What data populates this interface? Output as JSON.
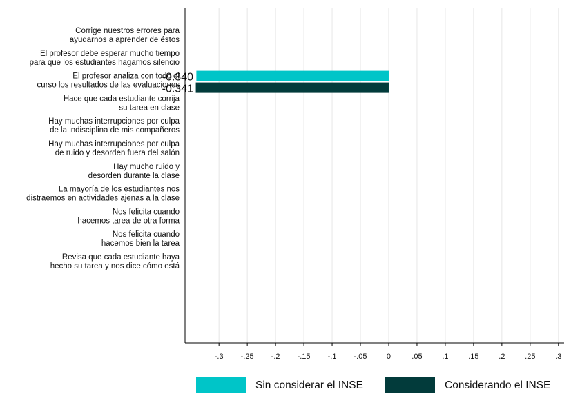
{
  "chart_data": {
    "type": "bar",
    "orientation": "horizontal",
    "categories": [
      [
        "Corrige nuestros errores para",
        "ayudarnos a aprender de éstos"
      ],
      [
        "El profesor debe esperar mucho tiempo",
        "para que los estudiantes hagamos silencio"
      ],
      [
        "El profesor analiza con todo el",
        "curso los resultados de las evaluaciones"
      ],
      [
        "Hace que cada estudiante corrija",
        "su tarea en clase"
      ],
      [
        "Hay muchas interrupciones por culpa",
        "de la indisciplina de mis compañeros"
      ],
      [
        "Hay muchas interrupciones por culpa",
        "de ruido y desorden fuera del salón"
      ],
      [
        "Hay mucho ruido y",
        "desorden durante la clase"
      ],
      [
        "La mayoría de los estudiantes nos",
        "distraemos en actividades ajenas a la clase"
      ],
      [
        "Nos felicita cuando",
        "hacemos tarea de otra forma"
      ],
      [
        "Nos felicita cuando",
        "hacemos bien la tarea"
      ],
      [
        "Revisa que cada estudiante haya",
        "hecho su tarea y nos dice cómo está"
      ]
    ],
    "series": [
      {
        "name": "Sin considerar el INSE",
        "color": "#00c5c8",
        "values": [
          null,
          null,
          -0.34,
          null,
          null,
          null,
          null,
          null,
          null,
          null,
          null
        ],
        "labels": [
          null,
          null,
          "-0.340",
          null,
          null,
          null,
          null,
          null,
          null,
          null,
          null
        ]
      },
      {
        "name": "Considerando el INSE",
        "color": "#023b3b",
        "values": [
          null,
          null,
          -0.341,
          null,
          null,
          null,
          null,
          null,
          null,
          null,
          null
        ],
        "labels": [
          null,
          null,
          "-0.341",
          null,
          null,
          null,
          null,
          null,
          null,
          null,
          null
        ]
      }
    ],
    "xlim": [
      -0.36,
      0.31
    ],
    "xticks": [
      -0.3,
      -0.25,
      -0.2,
      -0.15,
      -0.1,
      -0.05,
      0,
      0.05,
      0.1,
      0.15,
      0.2,
      0.25,
      0.3
    ],
    "xtick_labels": [
      "-.3",
      "-.25",
      "-.2",
      "-.15",
      "-.1",
      "-.05",
      "0",
      ".05",
      ".1",
      ".15",
      ".2",
      ".25",
      ".3"
    ],
    "grid": true,
    "legend_position": "bottom",
    "title": "",
    "xlabel": "",
    "ylabel": ""
  }
}
